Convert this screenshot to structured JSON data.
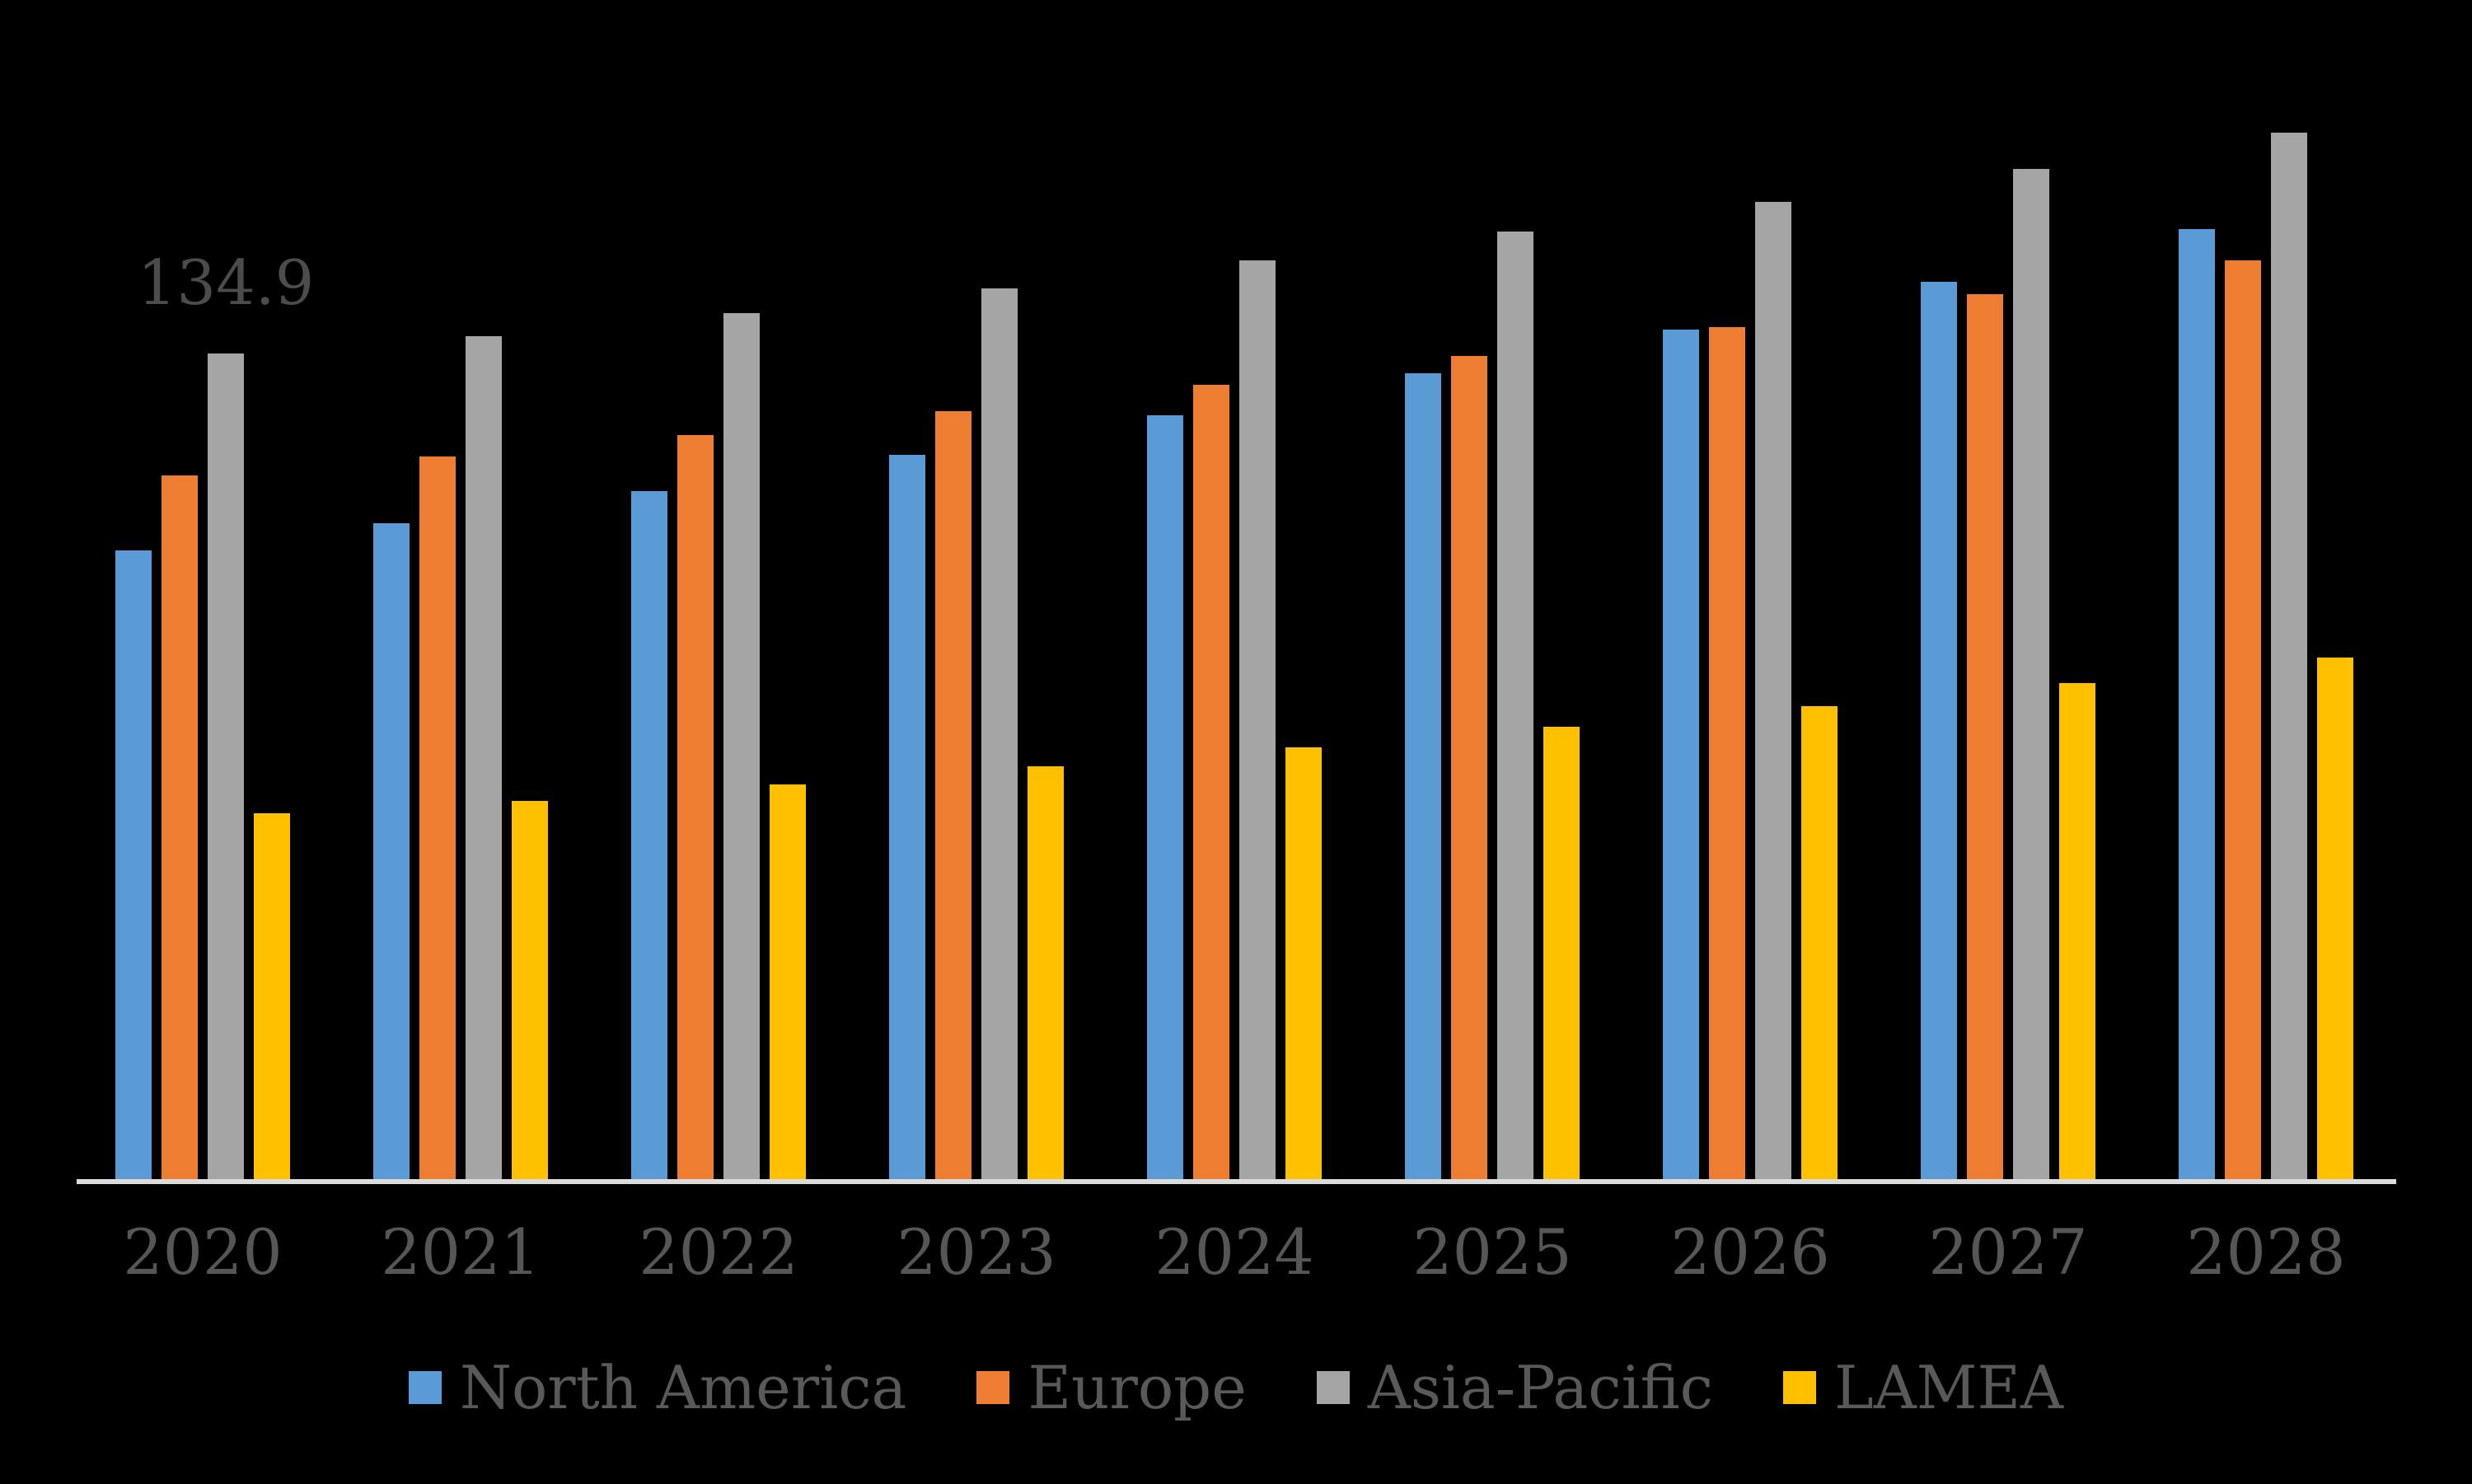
{
  "chart_data": {
    "type": "bar",
    "title": "",
    "categories": [
      "2020",
      "2021",
      "2022",
      "2023",
      "2024",
      "2025",
      "2026",
      "2027",
      "2028"
    ],
    "series": [
      {
        "name": "North America",
        "color": "#5B9BD5",
        "values": [
          102.8,
          107.3,
          112.5,
          118.4,
          124.8,
          131.7,
          138.9,
          146.7,
          155.3
        ]
      },
      {
        "name": "Europe",
        "color": "#ED7D31",
        "values": [
          115.1,
          118.1,
          121.6,
          125.6,
          129.9,
          134.5,
          139.2,
          144.6,
          150.2
        ]
      },
      {
        "name": "Asia-Pacific",
        "color": "#A5A5A5",
        "values": [
          134.9,
          137.8,
          141.5,
          145.6,
          150.1,
          154.9,
          159.7,
          165.1,
          171.0
        ]
      },
      {
        "name": "LAMEA",
        "color": "#FFC000",
        "values": [
          59.9,
          61.9,
          64.6,
          67.6,
          70.7,
          74.0,
          77.4,
          81.2,
          85.3
        ]
      }
    ],
    "data_label": {
      "series": "Asia-Pacific",
      "category": "2020",
      "text": "134.9"
    },
    "legend_position": "bottom",
    "grid": false,
    "y_axis_visible": false,
    "ylim": [
      0,
      180
    ],
    "background_color": "#000000",
    "axis_line_color": "#DCDCDC",
    "label_text_color": "#4C4C4C",
    "tick_text_color": "#565656",
    "legend_text_color": "#595959"
  }
}
